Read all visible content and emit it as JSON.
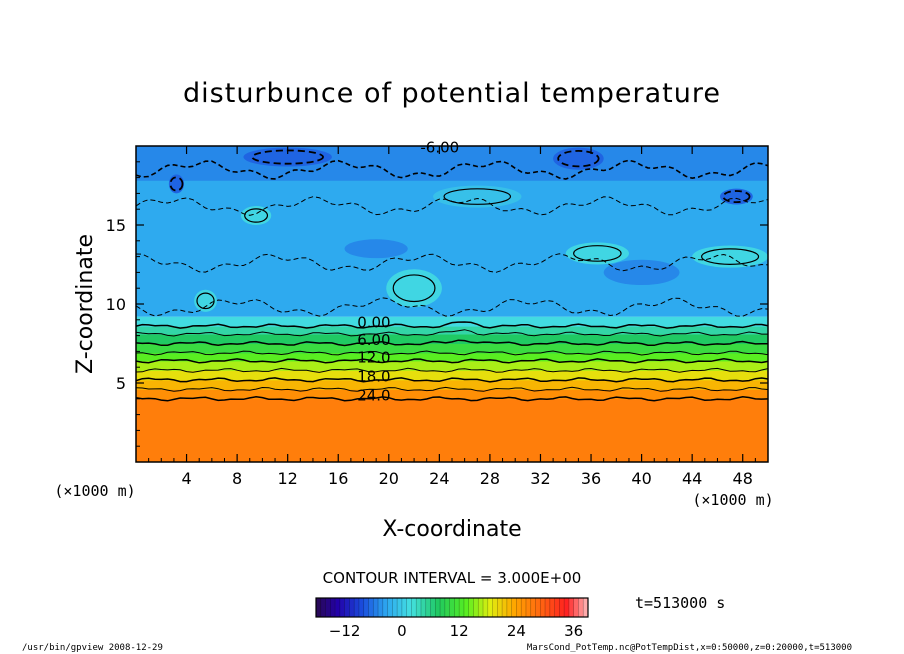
{
  "chart_data": {
    "type": "heatmap",
    "title": "disturbunce of potential temperature",
    "xlabel": "X-coordinate",
    "ylabel": "Z-coordinate",
    "x_unit": "(×1000 m)",
    "y_unit": "(×1000 m)",
    "xlim": [
      0,
      50
    ],
    "ylim": [
      0,
      20
    ],
    "x_ticks": [
      4,
      8,
      12,
      16,
      20,
      24,
      28,
      32,
      36,
      40,
      44,
      48
    ],
    "y_ticks": [
      5,
      10,
      15
    ],
    "contour_interval_label": "CONTOUR INTERVAL = 3.000E+00",
    "contour_labels": [
      {
        "text": "-6.00",
        "value": -6,
        "x": 22.5,
        "z": 19.6
      },
      {
        "text": "0.00",
        "value": 0,
        "x": 17.5,
        "z": 8.5
      },
      {
        "text": "6.00",
        "value": 6,
        "x": 17.5,
        "z": 7.4
      },
      {
        "text": "12.0",
        "value": 12,
        "x": 17.5,
        "z": 6.3
      },
      {
        "text": "18.0",
        "value": 18,
        "x": 17.5,
        "z": 5.1
      },
      {
        "text": "24.0",
        "value": 24,
        "x": 17.5,
        "z": 3.9
      }
    ],
    "horizontal_contours": [
      {
        "value": 0,
        "z": 8.6
      },
      {
        "value": 3,
        "z": 8.1
      },
      {
        "value": 6,
        "z": 7.5
      },
      {
        "value": 9,
        "z": 6.9
      },
      {
        "value": 12,
        "z": 6.4
      },
      {
        "value": 15,
        "z": 5.8
      },
      {
        "value": 18,
        "z": 5.2
      },
      {
        "value": 21,
        "z": 4.6
      },
      {
        "value": 24,
        "z": 4.0
      }
    ],
    "colorbar": {
      "range": [
        -18,
        39
      ],
      "tick_values": [
        -12,
        0,
        12,
        24,
        36
      ],
      "tick_labels": [
        "−12",
        "0",
        "12",
        "24",
        "36"
      ]
    },
    "time_label": "t=513000 s",
    "footer_left": "/usr/bin/gpview  2008-12-29",
    "footer_right": "MarsCond_PotTemp.nc@PotTempDist,x=0:50000,z=0:20000,t=513000"
  }
}
